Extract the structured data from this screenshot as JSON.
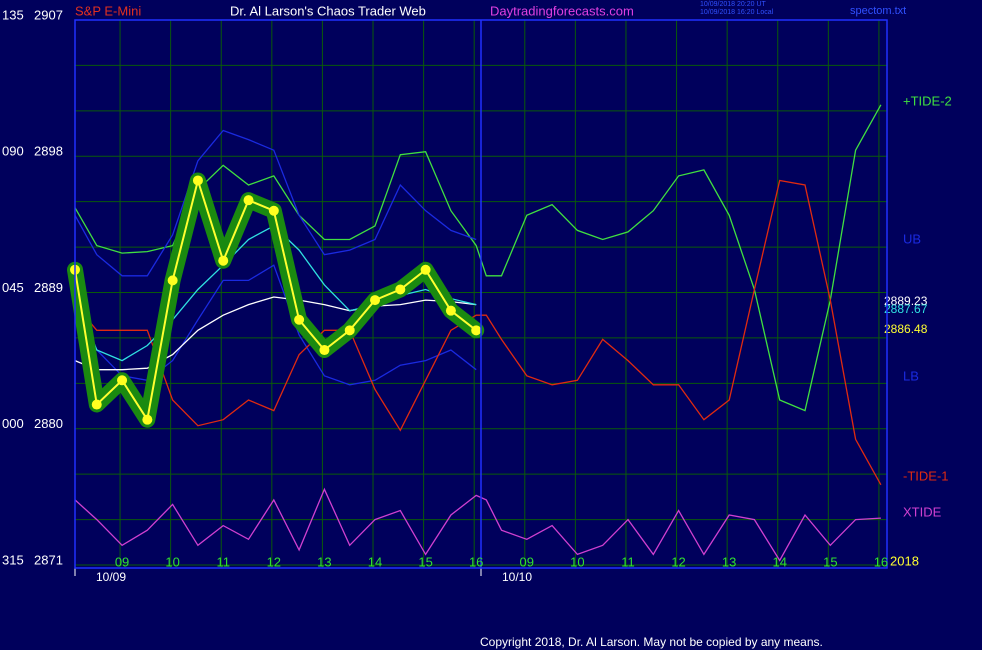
{
  "chart_data": {
    "type": "line",
    "instrument": "S&P E-Mini",
    "title": "Dr. Al Larson's Chaos Trader Web",
    "site": "Daytradingforecasts.com",
    "timestamps": [
      "10/09/2018 20:20 UT",
      "10/09/2018 16:20 Local"
    ],
    "file": "spectom.txt",
    "copyright": "Copyright 2018, Dr. Al Larson. May not be copied by any means.",
    "year": "2018",
    "dates": [
      "10/09",
      "10/10"
    ],
    "angle_labels": [
      "315",
      "000",
      "045",
      "090",
      "135"
    ],
    "readouts": [
      2889.23,
      2887.67,
      2886.48
    ],
    "ylim": [
      2871,
      2907
    ],
    "yticks": [
      2871,
      2880,
      2889,
      2898,
      2907
    ],
    "grid_y": [
      2871,
      2874,
      2877,
      2880,
      2883,
      2886,
      2889,
      2892,
      2895,
      2898,
      2901,
      2904,
      2907
    ],
    "xlim": [
      -0.93,
      15.12
    ],
    "xticks": [
      {
        "value": 0,
        "label": "09"
      },
      {
        "value": 1,
        "label": "10"
      },
      {
        "value": 2,
        "label": "11"
      },
      {
        "value": 3,
        "label": "12"
      },
      {
        "value": 4,
        "label": "13"
      },
      {
        "value": 5,
        "label": "14"
      },
      {
        "value": 6,
        "label": "15"
      },
      {
        "value": 7,
        "label": "16"
      },
      {
        "value": 8,
        "label": "09"
      },
      {
        "value": 9,
        "label": "10"
      },
      {
        "value": 10,
        "label": "11"
      },
      {
        "value": 11,
        "label": "12"
      },
      {
        "value": 12,
        "label": "13"
      },
      {
        "value": 13,
        "label": "14"
      },
      {
        "value": 14,
        "label": "15"
      },
      {
        "value": 15,
        "label": "16"
      }
    ],
    "grid": true,
    "x": [
      -0.93,
      -0.5,
      0,
      0.5,
      1,
      1.5,
      2,
      2.5,
      3,
      3.5,
      4,
      4.5,
      5,
      5.5,
      6,
      6.5,
      7,
      7.2,
      7.5,
      8,
      8.5,
      9,
      9.5,
      10,
      10.5,
      11,
      11.5,
      12,
      12.5,
      13,
      13.5,
      14,
      14.5,
      15
    ],
    "series": [
      {
        "name": "+TIDE-2",
        "color": "#40e040",
        "values": [
          2894.6,
          2892.1,
          2891.6,
          2891.7,
          2892.1,
          2895.8,
          2897.4,
          2896.1,
          2896.7,
          2894.1,
          2892.5,
          2892.5,
          2893.4,
          2898.1,
          2898.3,
          2894.4,
          2892.1,
          2890.1,
          2890.1,
          2894.1,
          2894.8,
          2893.1,
          2892.5,
          2893.0,
          2894.4,
          2896.7,
          2897.1,
          2894.1,
          2889.2,
          2881.9,
          2881.2,
          2888.5,
          2898.4,
          2901.4
        ]
      },
      {
        "name": "UB",
        "color": "#1a2ae0",
        "values": [
          2894.1,
          2891.5,
          2890.1,
          2890.1,
          2892.8,
          2897.7,
          2899.7,
          2899.1,
          2898.4,
          2894.1,
          2891.5,
          2891.8,
          2892.5,
          2896.1,
          2894.4,
          2893.1,
          2892.5,
          null,
          null,
          null,
          null,
          null,
          null,
          null,
          null,
          null,
          null,
          null,
          null,
          null,
          null,
          null,
          null,
          null
        ]
      },
      {
        "name": "LB",
        "color": "#1a2ae0",
        "values": [
          2888.5,
          2885.2,
          2883.5,
          2883.2,
          2884.5,
          2887.2,
          2889.8,
          2889.8,
          2890.8,
          2886.2,
          2883.5,
          2882.9,
          2883.2,
          2884.2,
          2884.5,
          2885.2,
          2883.9,
          null,
          null,
          null,
          null,
          null,
          null,
          null,
          null,
          null,
          null,
          null,
          null,
          null,
          null,
          null,
          null,
          null
        ]
      },
      {
        "name": "-TIDE-1",
        "color": "#e02a10",
        "values": [
          2888.2,
          2886.5,
          2886.5,
          2886.5,
          2881.9,
          2880.2,
          2880.6,
          2881.9,
          2881.2,
          2884.9,
          2886.5,
          2886.5,
          2882.6,
          2879.9,
          2883.2,
          2886.5,
          2887.5,
          2887.5,
          2885.9,
          2883.5,
          2882.9,
          2883.2,
          2885.9,
          2884.5,
          2882.9,
          2882.9,
          2880.6,
          2881.9,
          2889.2,
          2896.4,
          2896.1,
          2888.5,
          2879.3,
          2876.3
        ]
      },
      {
        "name": "XTIDE",
        "color": "#d040d0",
        "values": [
          2875.3,
          2874.0,
          2872.3,
          2873.3,
          2875.0,
          2872.3,
          2873.6,
          2872.7,
          2875.3,
          2872.0,
          2876.0,
          2872.3,
          2874.0,
          2874.6,
          2871.7,
          2874.3,
          2875.6,
          2875.3,
          2873.3,
          2872.7,
          2873.6,
          2871.7,
          2872.3,
          2874.0,
          2871.7,
          2874.6,
          2871.7,
          2874.3,
          2874.0,
          2871.3,
          2874.3,
          2872.3,
          2874.0,
          2874.1
        ]
      },
      {
        "color": "#ffffff",
        "values": [
          2884.5,
          2883.9,
          2883.9,
          2884.0,
          2884.9,
          2886.5,
          2887.5,
          2888.2,
          2888.7,
          2888.5,
          2888.2,
          2887.8,
          2888.1,
          2888.2,
          2888.5,
          2888.4,
          2888.2,
          null,
          null,
          null,
          null,
          null,
          null,
          null,
          null,
          null,
          null,
          null,
          null,
          null,
          null,
          null,
          null,
          null
        ]
      },
      {
        "color": "#30e0e0",
        "values": [
          2888.8,
          2885.2,
          2884.5,
          2885.5,
          2887.2,
          2889.2,
          2890.8,
          2892.5,
          2893.4,
          2891.8,
          2889.5,
          2887.8,
          2888.2,
          2888.8,
          2889.2,
          2888.6,
          2888.2,
          null,
          null,
          null,
          null,
          null,
          null,
          null,
          null,
          null,
          null,
          null,
          null,
          null,
          null,
          null,
          null,
          null
        ]
      },
      {
        "color": "#ffff30",
        "values": [
          2890.5,
          2881.6,
          2883.2,
          2880.6,
          2889.8,
          2896.4,
          2891.1,
          2895.1,
          2894.4,
          2887.2,
          2885.2,
          2886.5,
          2888.5,
          2889.2,
          2890.5,
          2887.8,
          2886.5,
          null,
          null,
          null,
          null,
          null,
          null,
          null,
          null,
          null,
          null,
          null,
          null,
          null,
          null,
          null,
          null,
          null
        ]
      }
    ]
  }
}
